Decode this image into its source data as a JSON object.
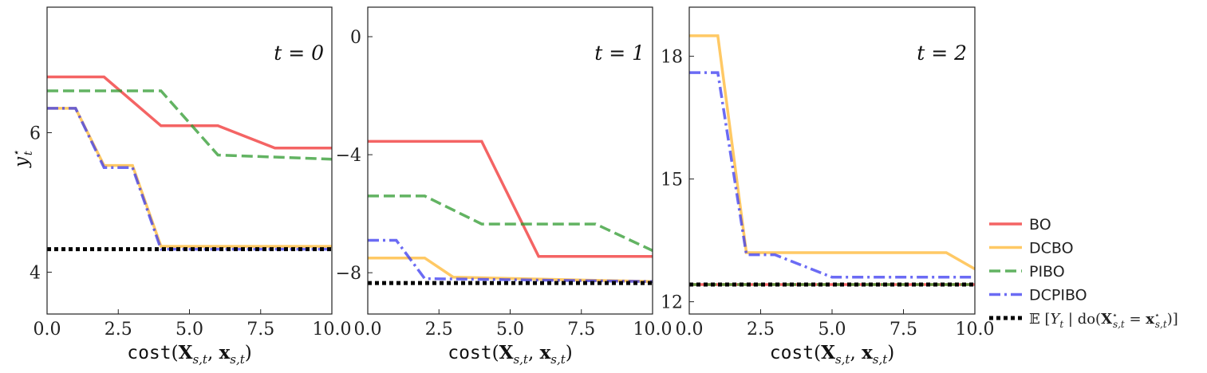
{
  "chart_data": [
    {
      "type": "line",
      "annotation": "t = 0",
      "xlabel": "cost(X_{s,t}, x_{s,t})",
      "ylabel": "y*_t",
      "xlim": [
        0,
        10
      ],
      "ylim": [
        3.4,
        7.8
      ],
      "x_ticks": [
        "0.0",
        "2.5",
        "5.0",
        "7.5",
        "10.0"
      ],
      "y_ticks": [
        "4",
        "6"
      ],
      "y_tick_values": [
        4,
        6
      ],
      "series": [
        {
          "name": "BO",
          "x": [
            0,
            2,
            4,
            6,
            8,
            10
          ],
          "y": [
            6.8,
            6.8,
            6.1,
            6.1,
            5.78,
            5.78
          ]
        },
        {
          "name": "DCBO",
          "x": [
            0,
            1,
            2,
            3,
            4,
            10
          ],
          "y": [
            6.35,
            6.35,
            5.53,
            5.53,
            4.37,
            4.37
          ]
        },
        {
          "name": "PIBO",
          "x": [
            0,
            4,
            6,
            10
          ],
          "y": [
            6.6,
            6.6,
            5.68,
            5.62
          ]
        },
        {
          "name": "DCPIBO",
          "x": [
            0,
            1,
            2,
            3,
            4,
            10
          ],
          "y": [
            6.35,
            6.35,
            5.5,
            5.5,
            4.33,
            4.33
          ]
        },
        {
          "name": "E[Y_t | do(X*_{s,t} = x*_{s,t})]",
          "x": [
            0,
            10
          ],
          "y": [
            4.33,
            4.33
          ]
        }
      ]
    },
    {
      "type": "line",
      "annotation": "t = 1",
      "xlabel": "cost(X_{s,t}, x_{s,t})",
      "ylabel": "",
      "xlim": [
        0,
        10
      ],
      "ylim": [
        -9.4,
        1.0
      ],
      "x_ticks": [
        "0.0",
        "2.5",
        "5.0",
        "7.5",
        "10.0"
      ],
      "y_ticks": [
        "0",
        "−4",
        "−8"
      ],
      "y_tick_values": [
        0,
        -4,
        -8
      ],
      "series": [
        {
          "name": "BO",
          "x": [
            0,
            4,
            6,
            10
          ],
          "y": [
            -3.55,
            -3.55,
            -7.45,
            -7.45
          ]
        },
        {
          "name": "DCBO",
          "x": [
            0,
            2,
            3,
            10
          ],
          "y": [
            -7.5,
            -7.5,
            -8.15,
            -8.3
          ]
        },
        {
          "name": "PIBO",
          "x": [
            0,
            2,
            4,
            8,
            10
          ],
          "y": [
            -5.4,
            -5.4,
            -6.35,
            -6.35,
            -7.25
          ]
        },
        {
          "name": "DCPIBO",
          "x": [
            0,
            1,
            2,
            10
          ],
          "y": [
            -6.9,
            -6.9,
            -8.2,
            -8.3
          ]
        },
        {
          "name": "E[Y_t | do(X*_{s,t} = x*_{s,t})]",
          "x": [
            0,
            10
          ],
          "y": [
            -8.35,
            -8.35
          ]
        }
      ]
    },
    {
      "type": "line",
      "annotation": "t = 2",
      "xlabel": "cost(X_{s,t}, x_{s,t})",
      "ylabel": "",
      "xlim": [
        0,
        10
      ],
      "ylim": [
        11.7,
        19.2
      ],
      "x_ticks": [
        "0.0",
        "2.5",
        "5.0",
        "7.5",
        "10.0"
      ],
      "y_ticks": [
        "18",
        "15",
        "12"
      ],
      "y_tick_values": [
        18,
        15,
        12
      ],
      "series": [
        {
          "name": "BO",
          "x": [
            0,
            10
          ],
          "y": [
            12.42,
            12.42
          ]
        },
        {
          "name": "DCBO",
          "x": [
            0,
            1,
            2,
            9,
            10
          ],
          "y": [
            18.5,
            18.5,
            13.2,
            13.2,
            12.8
          ]
        },
        {
          "name": "PIBO",
          "x": [
            0,
            10
          ],
          "y": [
            12.42,
            12.42
          ]
        },
        {
          "name": "DCPIBO",
          "x": [
            0,
            1,
            2,
            3,
            5,
            10
          ],
          "y": [
            17.6,
            17.6,
            13.15,
            13.15,
            12.6,
            12.6
          ]
        },
        {
          "name": "E[Y_t | do(X*_{s,t} = x*_{s,t})]",
          "x": [
            0,
            10
          ],
          "y": [
            12.42,
            12.42
          ]
        }
      ]
    }
  ],
  "legend": {
    "placement": "right",
    "entries": [
      "BO",
      "DCBO",
      "PIBO",
      "DCPIBO",
      "E[Y_t | do(X*_{s,t} = x*_{s,t})]"
    ]
  },
  "style": {
    "BO": {
      "color": "#f03030",
      "dash": "solid"
    },
    "DCBO": {
      "color": "#ffb732",
      "dash": "solid"
    },
    "PIBO": {
      "color": "#2e9a2e",
      "dash": "dashed"
    },
    "DCPIBO": {
      "color": "#3a3af0",
      "dash": "dashdot"
    },
    "E[Y_t | do(X*_{s,t} = x*_{s,t})]": {
      "color": "#000000",
      "dash": "dotted"
    }
  }
}
